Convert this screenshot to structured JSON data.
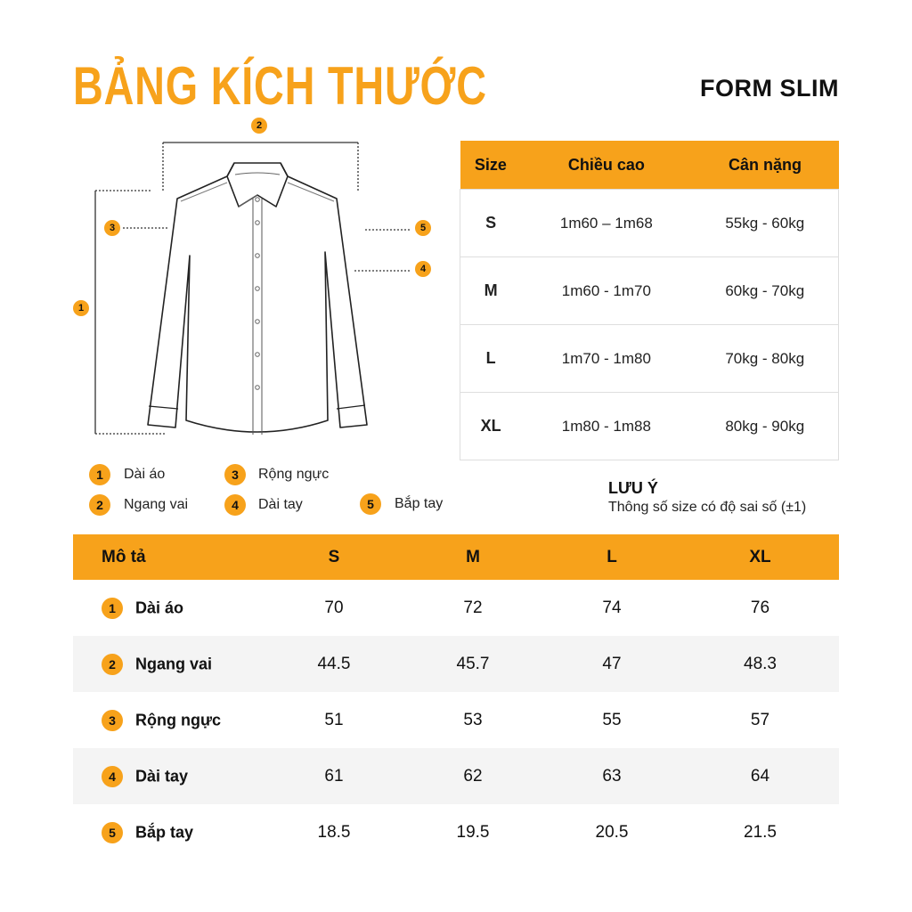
{
  "title": "BẢNG KÍCH THƯỚC",
  "form": "FORM SLIM",
  "accent_color": "#F7A21B",
  "diagram_markers": [
    "1",
    "2",
    "3",
    "4",
    "5"
  ],
  "legend": [
    {
      "num": "1",
      "label": "Dài áo"
    },
    {
      "num": "2",
      "label": "Ngang vai"
    },
    {
      "num": "3",
      "label": "Rộng ngực"
    },
    {
      "num": "4",
      "label": "Dài tay"
    },
    {
      "num": "5",
      "label": "Bắp tay"
    }
  ],
  "size_table": {
    "headers": [
      "Size",
      "Chiều cao",
      "Cân nặng"
    ],
    "rows": [
      [
        "S",
        "1m60 – 1m68",
        "55kg - 60kg"
      ],
      [
        "M",
        "1m60 - 1m70",
        "60kg - 70kg"
      ],
      [
        "L",
        "1m70 - 1m80",
        "70kg - 80kg"
      ],
      [
        "XL",
        "1m80 - 1m88",
        "80kg - 90kg"
      ]
    ]
  },
  "note": {
    "heading": "LƯU Ý",
    "text": "Thông số size có độ sai số (±1)"
  },
  "measure_table": {
    "headers": [
      "Mô tả",
      "S",
      "M",
      "L",
      "XL"
    ],
    "rows": [
      {
        "num": "1",
        "label": "Dài áo",
        "values": [
          "70",
          "72",
          "74",
          "76"
        ]
      },
      {
        "num": "2",
        "label": "Ngang vai",
        "values": [
          "44.5",
          "45.7",
          "47",
          "48.3"
        ]
      },
      {
        "num": "3",
        "label": "Rộng ngực",
        "values": [
          "51",
          "53",
          "55",
          "57"
        ]
      },
      {
        "num": "4",
        "label": "Dài tay",
        "values": [
          "61",
          "62",
          "63",
          "64"
        ]
      },
      {
        "num": "5",
        "label": "Bắp tay",
        "values": [
          "18.5",
          "19.5",
          "20.5",
          "21.5"
        ]
      }
    ]
  }
}
